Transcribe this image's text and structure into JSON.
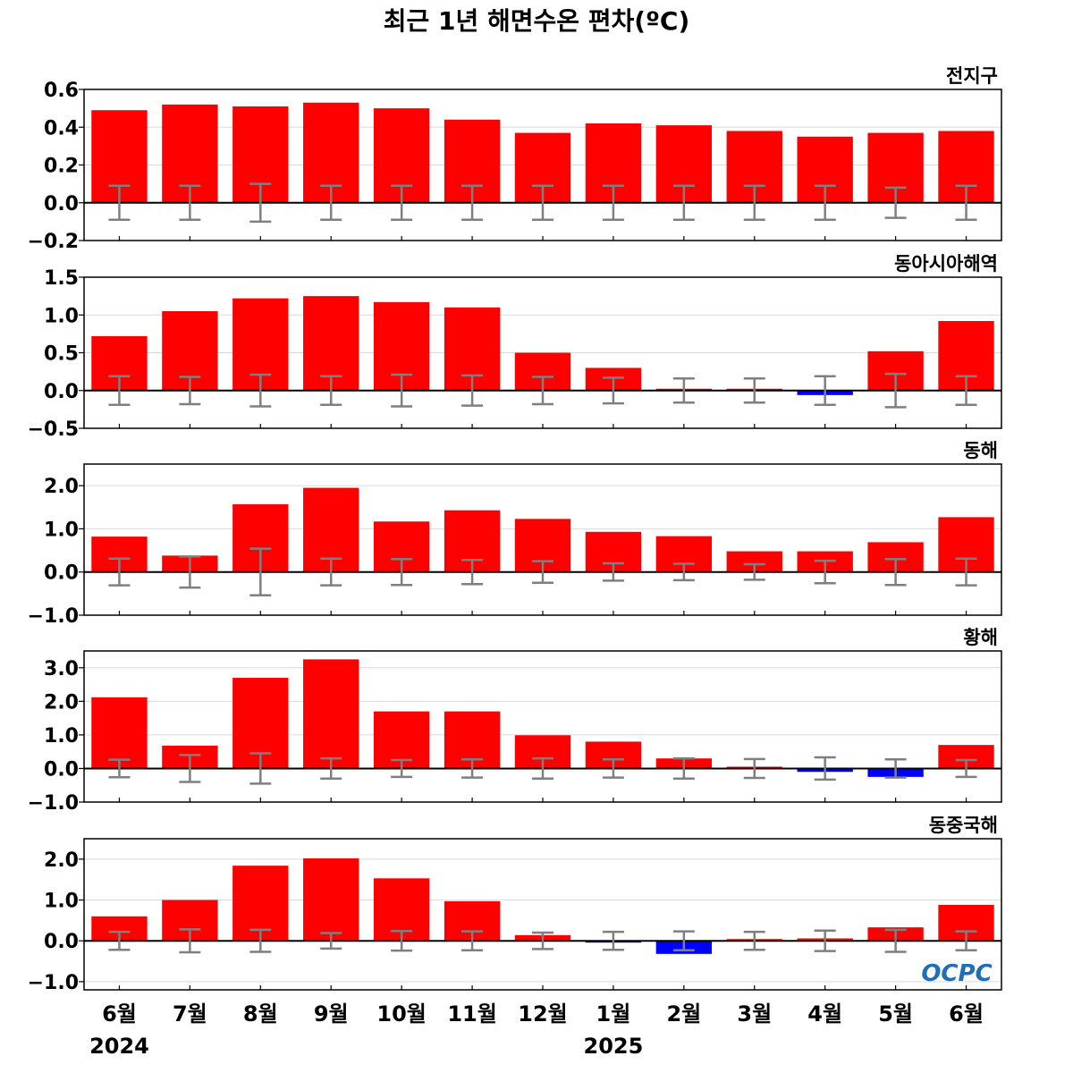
{
  "title": "최근 1년 해면수온 편차(ºC)",
  "logo": "OCPC",
  "colors": {
    "positive": "#ff0000",
    "negative": "#0000ff",
    "errorbar": "#7f7f7f",
    "grid": "#d9d9d9",
    "zero": "#000000"
  },
  "chart_data": {
    "type": "bar",
    "categories": [
      "6월",
      "7월",
      "8월",
      "9월",
      "10월",
      "11월",
      "12월",
      "1월",
      "2월",
      "3월",
      "4월",
      "5월",
      "6월"
    ],
    "years": [
      {
        "label": "2024",
        "index": 0
      },
      {
        "label": "2025",
        "index": 7
      }
    ],
    "grid": "horizontal",
    "panels": [
      {
        "name": "전지구",
        "ylim": [
          -0.2,
          0.6
        ],
        "yticks": [
          -0.2,
          0.0,
          0.2,
          0.4,
          0.6
        ],
        "ytick_labels": [
          "−0.2",
          "0.0",
          "0.2",
          "0.4",
          "0.6"
        ],
        "values": [
          0.49,
          0.52,
          0.51,
          0.53,
          0.5,
          0.44,
          0.37,
          0.42,
          0.41,
          0.38,
          0.35,
          0.37,
          0.38
        ],
        "errors": [
          0.09,
          0.09,
          0.1,
          0.09,
          0.09,
          0.09,
          0.09,
          0.09,
          0.09,
          0.09,
          0.09,
          0.08,
          0.09
        ]
      },
      {
        "name": "동아시아해역",
        "ylim": [
          -0.5,
          1.5
        ],
        "yticks": [
          -0.5,
          0.0,
          0.5,
          1.0,
          1.5
        ],
        "ytick_labels": [
          "−0.5",
          "0.0",
          "0.5",
          "1.0",
          "1.5"
        ],
        "values": [
          0.72,
          1.05,
          1.22,
          1.25,
          1.17,
          1.1,
          0.5,
          0.3,
          0.02,
          0.01,
          -0.06,
          0.52,
          0.92
        ],
        "errors": [
          0.19,
          0.18,
          0.21,
          0.19,
          0.21,
          0.2,
          0.18,
          0.17,
          0.16,
          0.16,
          0.19,
          0.22,
          0.19
        ]
      },
      {
        "name": "동해",
        "ylim": [
          -1.0,
          2.5
        ],
        "yticks": [
          -1.0,
          0.0,
          1.0,
          2.0
        ],
        "ytick_labels": [
          "−1.0",
          "0.0",
          "1.0",
          "2.0"
        ],
        "values": [
          0.82,
          0.38,
          1.57,
          1.95,
          1.17,
          1.43,
          1.23,
          0.93,
          0.83,
          0.48,
          0.48,
          0.69,
          1.27
        ],
        "errors": [
          0.31,
          0.36,
          0.54,
          0.31,
          0.3,
          0.28,
          0.25,
          0.2,
          0.19,
          0.18,
          0.26,
          0.3,
          0.31
        ]
      },
      {
        "name": "황해",
        "ylim": [
          -1.0,
          3.5
        ],
        "yticks": [
          -1.0,
          0.0,
          1.0,
          2.0,
          3.0
        ],
        "ytick_labels": [
          "−1.0",
          "0.0",
          "1.0",
          "2.0",
          "3.0"
        ],
        "values": [
          2.12,
          0.68,
          2.7,
          3.25,
          1.7,
          1.7,
          0.99,
          0.8,
          0.3,
          0.05,
          -0.1,
          -0.25,
          0.7
        ],
        "errors": [
          0.26,
          0.4,
          0.45,
          0.3,
          0.25,
          0.27,
          0.3,
          0.27,
          0.3,
          0.28,
          0.33,
          0.27,
          0.25
        ]
      },
      {
        "name": "동중국해",
        "ylim": [
          -1.2,
          2.5
        ],
        "yticks": [
          -1.0,
          0.0,
          1.0,
          2.0
        ],
        "ytick_labels": [
          "−1.0",
          "0.0",
          "1.0",
          "2.0"
        ],
        "values": [
          0.6,
          1.0,
          1.84,
          2.02,
          1.53,
          0.97,
          0.14,
          -0.04,
          -0.32,
          0.04,
          0.06,
          0.33,
          0.88
        ],
        "errors": [
          0.22,
          0.28,
          0.27,
          0.19,
          0.24,
          0.23,
          0.2,
          0.22,
          0.23,
          0.22,
          0.25,
          0.27,
          0.23
        ]
      }
    ]
  }
}
